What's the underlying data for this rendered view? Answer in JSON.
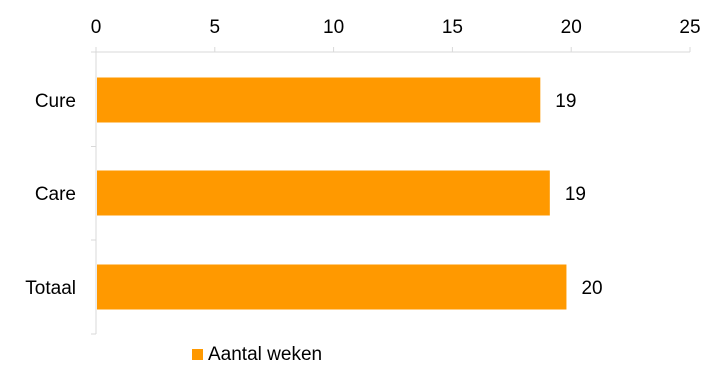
{
  "chart_data": {
    "type": "bar",
    "orientation": "horizontal",
    "categories": [
      "Cure",
      "Care",
      "Totaal"
    ],
    "series": [
      {
        "name": "Aantal weken",
        "values": [
          18.7,
          19.1,
          19.8
        ],
        "data_labels": [
          "19",
          "19",
          "20"
        ],
        "color": "#FF9900"
      }
    ],
    "x_ticks": [
      "0",
      "5",
      "10",
      "15",
      "20",
      "25"
    ],
    "xlim": [
      0,
      25
    ],
    "x_axis_position": "top",
    "grid": false,
    "legend_position": "bottom"
  }
}
